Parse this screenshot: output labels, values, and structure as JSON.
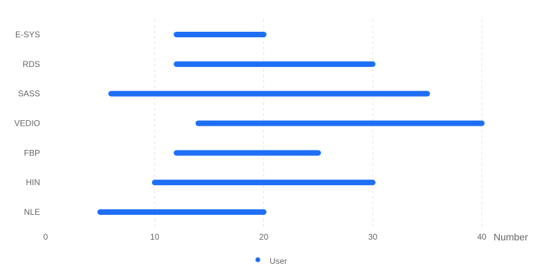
{
  "chart_data": {
    "type": "bar",
    "orientation": "horizontal",
    "subtype": "range",
    "categories": [
      "E-SYS",
      "RDS",
      "SASS",
      "VEDIO",
      "FBP",
      "HIN",
      "NLE"
    ],
    "series": [
      {
        "name": "User",
        "ranges": [
          [
            12,
            20
          ],
          [
            12,
            30
          ],
          [
            6,
            35
          ],
          [
            14,
            40
          ],
          [
            12,
            25
          ],
          [
            10,
            30
          ],
          [
            5,
            20
          ]
        ]
      }
    ],
    "xlabel": "Number",
    "ylabel": "",
    "xlim": [
      0,
      40
    ],
    "xticks": [
      "0",
      "10",
      "20",
      "30",
      "40"
    ],
    "grid": "vertical-dashed",
    "legend": "bottom-center",
    "colors": {
      "bar": "#1e6ff5",
      "grid": "#e3e3e3",
      "text": "#666666"
    }
  }
}
